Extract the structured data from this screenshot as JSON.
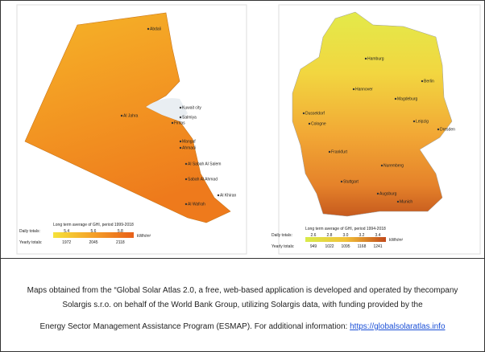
{
  "left_map": {
    "cities": [
      "Abdali",
      "Al Jahra",
      "Kuwait city",
      "Salmiya",
      "Fintas",
      "Mangaf",
      "Ahmadi",
      "Al Sabah Al Salem",
      "Sabah Al Ahmad",
      "Al Khiran",
      "Al Wafrah"
    ],
    "legend": {
      "title": "Long term average of GHI, period 1999-2018",
      "daily_label": "Daily totals:",
      "daily": [
        "5.4",
        "5.6",
        "5.8"
      ],
      "unit": "kWh/m²",
      "yearly_label": "Yearly totals:",
      "yearly": [
        "1972",
        "2045",
        "2118"
      ]
    }
  },
  "right_map": {
    "cities": [
      "Hamburg",
      "Berlin",
      "Hannover",
      "Magdeburg",
      "Dusseldorf",
      "Cologne",
      "Leipzig",
      "Dresden",
      "Frankfurt",
      "Nuremberg",
      "Stuttgart",
      "Augsburg",
      "Munich"
    ],
    "legend": {
      "title": "Long term average of GHI, period 1994-2018",
      "daily_label": "Daily totals:",
      "daily": [
        "2.6",
        "2.8",
        "3.0",
        "3.2",
        "3.4"
      ],
      "unit": "kWh/m²",
      "yearly_label": "Yearly totals:",
      "yearly": [
        "949",
        "1022",
        "1095",
        "1168",
        "1241"
      ]
    }
  },
  "caption": {
    "line1": "Maps obtained from the “Global Solar Atlas 2.0, a free, web-based application is developed and operated by thecompany",
    "line2": "Solargis s.r.o. on behalf of the World Bank Group, utilizing Solargis data, with funding provided by the",
    "line3": "Energy Sector Management Assistance Program (ESMAP). For additional information: ",
    "link": "https://globalsolaratlas.info"
  }
}
